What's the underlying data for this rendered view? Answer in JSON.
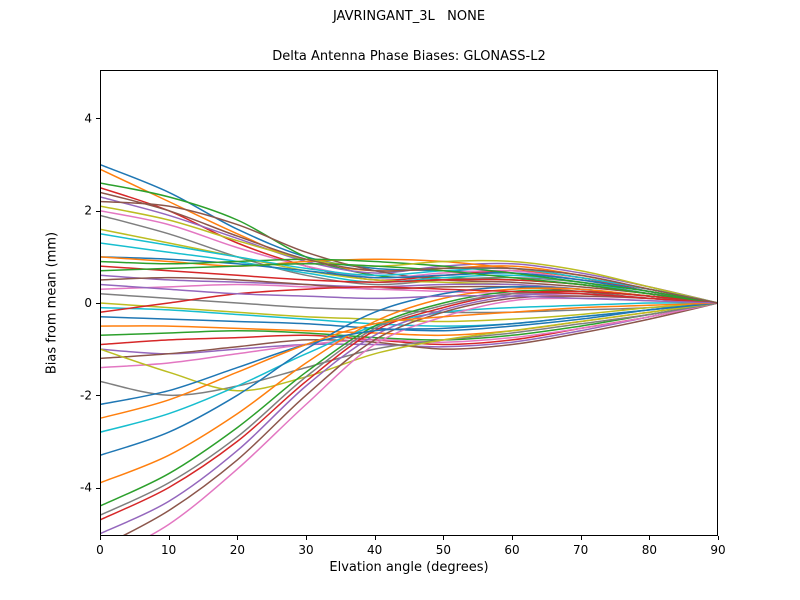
{
  "chart_data": {
    "type": "line",
    "title": "JAVRINGANT_3L   NONE",
    "subtitle": "Delta Antenna Phase Biases: GLONASS-L2",
    "xlabel": "Elvation angle (degrees)",
    "ylabel": "Bias from mean (mm)",
    "xlim": [
      0,
      90
    ],
    "ylim": [
      -5.05,
      5.05
    ],
    "x_ticks": [
      0,
      10,
      20,
      30,
      40,
      50,
      60,
      70,
      80,
      90
    ],
    "y_ticks": [
      -4,
      -2,
      0,
      2,
      4
    ],
    "grid": false,
    "legend": "none",
    "axis_color": "#000000",
    "background": "#ffffff",
    "palette": [
      "#1f77b4",
      "#ff7f0e",
      "#2ca02c",
      "#d62728",
      "#9467bd",
      "#8c564b",
      "#e377c2",
      "#7f7f7f",
      "#bcbd22",
      "#17becf"
    ],
    "x": [
      0,
      10,
      20,
      30,
      40,
      50,
      60,
      70,
      80,
      90
    ],
    "series": [
      {
        "values": [
          3.0,
          2.4,
          1.6,
          1.0,
          0.75,
          0.7,
          0.65,
          0.5,
          0.3,
          0.0
        ]
      },
      {
        "values": [
          2.9,
          2.2,
          1.5,
          0.9,
          0.7,
          0.75,
          0.8,
          0.6,
          0.3,
          0.0
        ]
      },
      {
        "values": [
          2.6,
          2.3,
          1.8,
          1.0,
          0.6,
          0.55,
          0.5,
          0.4,
          0.2,
          0.0
        ]
      },
      {
        "values": [
          2.5,
          2.0,
          1.3,
          0.8,
          0.5,
          0.6,
          0.7,
          0.55,
          0.25,
          0.0
        ]
      },
      {
        "values": [
          2.3,
          1.9,
          1.4,
          0.9,
          0.65,
          0.8,
          0.85,
          0.65,
          0.35,
          0.0
        ]
      },
      {
        "values": [
          2.2,
          2.1,
          1.7,
          1.1,
          0.7,
          0.5,
          0.45,
          0.35,
          0.2,
          0.0
        ]
      },
      {
        "values": [
          2.0,
          1.7,
          1.2,
          0.8,
          0.55,
          0.65,
          0.7,
          0.5,
          0.25,
          0.0
        ]
      },
      {
        "values": [
          1.9,
          1.5,
          1.0,
          0.6,
          0.4,
          0.5,
          0.55,
          0.45,
          0.2,
          0.0
        ]
      },
      {
        "values": [
          1.6,
          1.3,
          1.0,
          0.7,
          0.5,
          0.45,
          0.4,
          0.3,
          0.15,
          0.0
        ]
      },
      {
        "values": [
          1.3,
          1.1,
          0.9,
          0.65,
          0.45,
          0.55,
          0.6,
          0.45,
          0.2,
          0.0
        ]
      },
      {
        "values": [
          1.0,
          0.95,
          0.85,
          0.7,
          0.55,
          0.6,
          0.65,
          0.5,
          0.25,
          0.0
        ]
      },
      {
        "values": [
          1.0,
          0.9,
          0.8,
          0.9,
          0.95,
          0.9,
          0.75,
          0.55,
          0.3,
          0.0
        ]
      },
      {
        "values": [
          0.9,
          0.85,
          0.9,
          0.95,
          0.9,
          0.8,
          0.65,
          0.45,
          0.25,
          0.0
        ]
      },
      {
        "values": [
          0.8,
          0.7,
          0.6,
          0.5,
          0.45,
          0.5,
          0.5,
          0.4,
          0.2,
          0.0
        ]
      },
      {
        "values": [
          0.6,
          0.5,
          0.45,
          0.4,
          0.35,
          0.4,
          0.4,
          0.3,
          0.15,
          0.0
        ]
      },
      {
        "values": [
          0.5,
          0.55,
          0.5,
          0.4,
          0.3,
          0.35,
          0.35,
          0.25,
          0.1,
          0.0
        ]
      },
      {
        "values": [
          0.3,
          0.35,
          0.4,
          0.35,
          0.3,
          0.25,
          0.2,
          0.15,
          0.1,
          0.0
        ]
      },
      {
        "values": [
          0.2,
          0.1,
          0.0,
          -0.1,
          -0.15,
          -0.2,
          -0.2,
          -0.15,
          -0.1,
          0.0
        ]
      },
      {
        "values": [
          0.0,
          -0.1,
          -0.2,
          -0.3,
          -0.35,
          -0.4,
          -0.35,
          -0.25,
          -0.1,
          0.0
        ]
      },
      {
        "values": [
          -0.1,
          -0.15,
          -0.25,
          -0.35,
          -0.45,
          -0.5,
          -0.45,
          -0.3,
          -0.15,
          0.0
        ]
      },
      {
        "values": [
          -0.3,
          -0.35,
          -0.4,
          -0.45,
          -0.55,
          -0.6,
          -0.5,
          -0.35,
          -0.15,
          0.0
        ]
      },
      {
        "values": [
          -0.5,
          -0.5,
          -0.55,
          -0.6,
          -0.65,
          -0.7,
          -0.6,
          -0.4,
          -0.2,
          0.0
        ]
      },
      {
        "values": [
          -0.7,
          -0.65,
          -0.6,
          -0.65,
          -0.75,
          -0.8,
          -0.7,
          -0.5,
          -0.25,
          0.0
        ]
      },
      {
        "values": [
          -0.9,
          -0.8,
          -0.75,
          -0.7,
          -0.8,
          -0.9,
          -0.8,
          -0.55,
          -0.3,
          0.0
        ]
      },
      {
        "values": [
          -1.0,
          -1.1,
          -1.0,
          -0.9,
          -0.9,
          -0.95,
          -0.85,
          -0.6,
          -0.3,
          0.0
        ]
      },
      {
        "values": [
          -1.2,
          -1.1,
          -0.95,
          -0.8,
          -0.85,
          -1.0,
          -0.9,
          -0.65,
          -0.35,
          0.0
        ]
      },
      {
        "values": [
          -1.4,
          -1.3,
          -1.1,
          -0.9,
          -0.8,
          -0.85,
          -0.75,
          -0.55,
          -0.3,
          0.0
        ]
      },
      {
        "values": [
          -1.7,
          -2.0,
          -1.8,
          -1.4,
          -1.0,
          -0.8,
          -0.65,
          -0.45,
          -0.25,
          0.0
        ]
      },
      {
        "values": [
          -1.0,
          -1.5,
          -1.9,
          -1.6,
          -1.1,
          -0.8,
          -0.6,
          -0.4,
          -0.2,
          0.0
        ]
      },
      {
        "values": [
          -2.8,
          -2.4,
          -1.8,
          -1.1,
          -0.5,
          -0.2,
          -0.1,
          -0.05,
          0.0,
          0.0
        ]
      },
      {
        "values": [
          -3.3,
          -2.8,
          -2.0,
          -1.0,
          -0.2,
          0.2,
          0.35,
          0.3,
          0.15,
          0.0
        ]
      },
      {
        "values": [
          -3.9,
          -3.3,
          -2.4,
          -1.3,
          -0.4,
          0.1,
          0.3,
          0.3,
          0.15,
          0.0
        ]
      },
      {
        "values": [
          -4.4,
          -3.7,
          -2.7,
          -1.5,
          -0.5,
          0.0,
          0.25,
          0.25,
          0.15,
          0.0
        ]
      },
      {
        "values": [
          -4.7,
          -4.0,
          -3.0,
          -1.7,
          -0.6,
          -0.1,
          0.2,
          0.25,
          0.15,
          0.0
        ]
      },
      {
        "values": [
          -5.0,
          -4.3,
          -3.2,
          -1.8,
          -0.7,
          -0.15,
          0.15,
          0.2,
          0.1,
          0.0
        ]
      },
      {
        "values": [
          -5.3,
          -4.5,
          -3.4,
          -2.0,
          -0.8,
          -0.2,
          0.1,
          0.15,
          0.1,
          0.0
        ]
      },
      {
        "values": [
          -5.6,
          -4.8,
          -3.6,
          -2.2,
          -0.9,
          -0.3,
          0.05,
          0.1,
          0.05,
          0.0
        ]
      },
      {
        "values": [
          -4.6,
          -3.9,
          -2.9,
          -1.6,
          -0.55,
          -0.05,
          0.2,
          0.2,
          0.1,
          0.0
        ]
      },
      {
        "values": [
          2.1,
          1.8,
          1.35,
          0.95,
          0.8,
          0.9,
          0.9,
          0.7,
          0.35,
          0.0
        ]
      },
      {
        "values": [
          1.5,
          1.25,
          1.0,
          0.75,
          0.6,
          0.7,
          0.75,
          0.55,
          0.3,
          0.0
        ]
      },
      {
        "values": [
          -2.2,
          -1.9,
          -1.4,
          -0.9,
          -0.6,
          -0.55,
          -0.45,
          -0.3,
          -0.15,
          0.0
        ]
      },
      {
        "values": [
          -2.5,
          -2.1,
          -1.5,
          -0.9,
          -0.45,
          -0.3,
          -0.2,
          -0.1,
          -0.05,
          0.0
        ]
      },
      {
        "values": [
          0.7,
          0.75,
          0.8,
          0.85,
          0.8,
          0.7,
          0.55,
          0.4,
          0.2,
          0.0
        ]
      },
      {
        "values": [
          -0.2,
          0.0,
          0.2,
          0.3,
          0.35,
          0.3,
          0.25,
          0.2,
          0.1,
          0.0
        ]
      },
      {
        "values": [
          0.4,
          0.3,
          0.2,
          0.15,
          0.1,
          0.15,
          0.15,
          0.1,
          0.05,
          0.0
        ]
      },
      {
        "values": [
          2.4,
          2.0,
          1.45,
          0.95,
          0.7,
          0.75,
          0.75,
          0.6,
          0.3,
          0.0
        ]
      }
    ]
  }
}
